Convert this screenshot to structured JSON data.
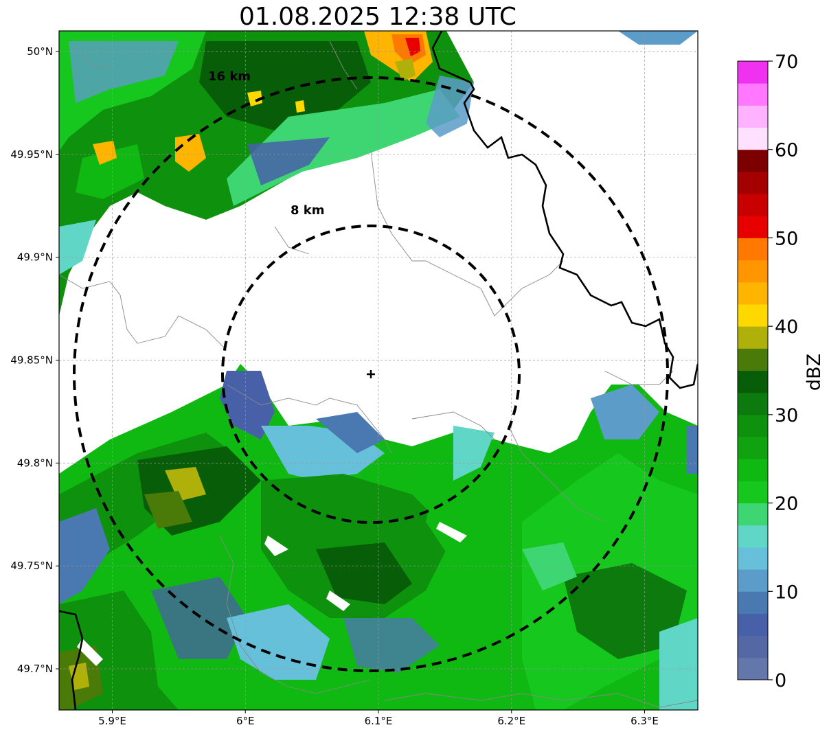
{
  "title": "01.08.2025 12:38 UTC",
  "map": {
    "x_ticks": [
      {
        "lon": 5.9,
        "label": "5.9°E"
      },
      {
        "lon": 6.0,
        "label": "6°E"
      },
      {
        "lon": 6.1,
        "label": "6.1°E"
      },
      {
        "lon": 6.2,
        "label": "6.2°E"
      },
      {
        "lon": 6.3,
        "label": "6.3°E"
      }
    ],
    "y_ticks": [
      {
        "lat": 50.0,
        "label": "50°N"
      },
      {
        "lat": 49.95,
        "label": "49.95°N"
      },
      {
        "lat": 49.9,
        "label": "49.9°N"
      },
      {
        "lat": 49.85,
        "label": "49.85°N"
      },
      {
        "lat": 49.8,
        "label": "49.8°N"
      },
      {
        "lat": 49.75,
        "label": "49.75°N"
      },
      {
        "lat": 49.7,
        "label": "49.7°N"
      }
    ],
    "lon_range": [
      5.86,
      6.34
    ],
    "lat_range": [
      49.68,
      50.01
    ],
    "radar_site": {
      "lon": 6.095,
      "lat": 49.843
    },
    "range_rings": [
      {
        "label": "8 km"
      },
      {
        "label": "16 km"
      }
    ],
    "gridlines": true
  },
  "colorbar": {
    "label": "dBZ",
    "min": 0,
    "max": 70,
    "tick_values": [
      0,
      10,
      20,
      30,
      40,
      50,
      60,
      70
    ],
    "tick_labels": [
      "0",
      "10",
      "20",
      "30",
      "40",
      "50",
      "60",
      "70"
    ],
    "colors": [
      "#6477aa",
      "#5468a4",
      "#4760a8",
      "#4a78b0",
      "#5b9cc8",
      "#67c0da",
      "#5fd6c6",
      "#3ed672",
      "#16c81e",
      "#10b812",
      "#0fa40f",
      "#0e920e",
      "#0c7a0c",
      "#085e08",
      "#4a7a08",
      "#b0b00a",
      "#ffd800",
      "#ffb400",
      "#ff9600",
      "#ff7800",
      "#e80000",
      "#c80000",
      "#a40000",
      "#7c0000",
      "#ffe0ff",
      "#ffb2ff",
      "#ff78ff",
      "#f032f0"
    ]
  }
}
